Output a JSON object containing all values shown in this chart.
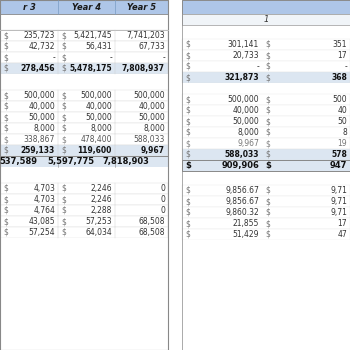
{
  "header_color": "#aec6e8",
  "white": "#ffffff",
  "bg_color": "#ffffff",
  "total_row_color": "#c5d9f1",
  "light_blue": "#dce6f1",
  "gray_line": "#aaaaaa",
  "left_table": {
    "headers": [
      "r 3",
      "Year 4",
      "Year 5"
    ],
    "section1": {
      "rows": [
        [
          "235,723",
          "$",
          "5,421,745",
          "$",
          "7,741,203"
        ],
        [
          "42,732",
          "$",
          "56,431",
          "$",
          "67,733"
        ],
        [
          "-",
          "$",
          "-",
          "$",
          "-"
        ],
        [
          "278,456",
          "$",
          "5,478,175",
          "$",
          "7,808,937"
        ]
      ],
      "bold": [
        false,
        false,
        false,
        true
      ]
    },
    "section2": {
      "rows": [
        [
          "500,000",
          "$",
          "500,000",
          "$",
          "500,000"
        ],
        [
          "40,000",
          "$",
          "40,000",
          "$",
          "40,000"
        ],
        [
          "50,000",
          "$",
          "50,000",
          "$",
          "50,000"
        ],
        [
          "8,000",
          "$",
          "8,000",
          "$",
          "8,000"
        ],
        [
          "338,867",
          "$",
          "478,400",
          "$",
          "588,033"
        ],
        [
          "259,133",
          "$",
          "119,600",
          "$",
          "9,967"
        ]
      ],
      "bold": [
        false,
        false,
        false,
        false,
        false,
        true
      ],
      "faded": [
        false,
        false,
        false,
        false,
        true,
        false
      ]
    },
    "total_row": [
      "537,589",
      "5,597,775",
      "7,818,903"
    ],
    "section3": {
      "rows": [
        [
          "4,703",
          "$",
          "2,246",
          "$",
          "0"
        ],
        [
          "4,703",
          "$",
          "2,246",
          "$",
          "0"
        ],
        [
          "4,764",
          "$",
          "2,288",
          "$",
          "0"
        ],
        [
          "43,085",
          "$",
          "57,253",
          "$",
          "68,508"
        ],
        [
          "57,254",
          "$",
          "64,034",
          "$",
          "68,508"
        ]
      ],
      "bold": [
        false,
        false,
        false,
        false,
        false
      ]
    }
  },
  "right_table": {
    "header": "1",
    "section1": {
      "rows": [
        [
          "$",
          "301,141",
          "$",
          "351"
        ],
        [
          "$",
          "20,733",
          "$",
          "17"
        ],
        [
          "$",
          "-",
          "$",
          "-"
        ],
        [
          "$",
          "321,873",
          "$",
          "368"
        ]
      ],
      "bold": [
        false,
        false,
        false,
        true
      ]
    },
    "section2": {
      "rows": [
        [
          "$",
          "500,000",
          "$",
          "500"
        ],
        [
          "$",
          "40,000",
          "$",
          "40"
        ],
        [
          "$",
          "50,000",
          "$",
          "50"
        ],
        [
          "$",
          "8,000",
          "$",
          "8"
        ],
        [
          "$",
          "9,967",
          "$",
          "19"
        ],
        [
          "$",
          "588,033",
          "$",
          "578"
        ]
      ],
      "bold": [
        false,
        false,
        false,
        false,
        false,
        true
      ],
      "faded": [
        false,
        false,
        false,
        false,
        true,
        false
      ]
    },
    "total_row": [
      "$",
      "909,906",
      "$",
      "947"
    ],
    "section3": {
      "rows": [
        [
          "$",
          "9,856.67",
          "$",
          "9,71"
        ],
        [
          "$",
          "9,856.67",
          "$",
          "9,71"
        ],
        [
          "$",
          "9,860.32",
          "$",
          "9,71"
        ],
        [
          "$",
          "21,855",
          "$",
          "17"
        ],
        [
          "$",
          "51,429",
          "$",
          "47"
        ]
      ],
      "bold": [
        false,
        false,
        false,
        false,
        false
      ]
    }
  }
}
